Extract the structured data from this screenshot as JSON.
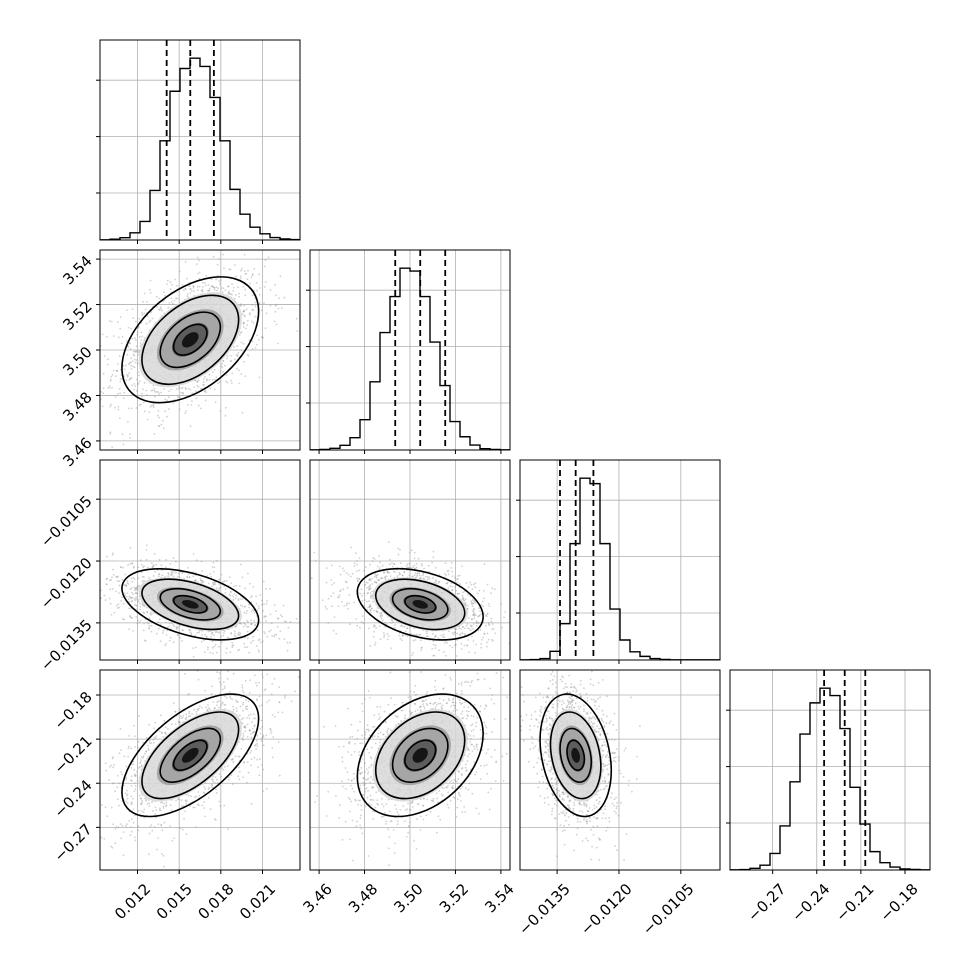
{
  "chart_data": {
    "type": "corner",
    "title": "",
    "parameters": [
      "",
      "",
      "",
      ""
    ],
    "ranges": [
      [
        0.0093,
        0.0237
      ],
      [
        3.456,
        3.544
      ],
      [
        -0.0144,
        -0.00955
      ],
      [
        -0.299,
        -0.163
      ]
    ],
    "ticks": [
      [
        0.012,
        0.015,
        0.018,
        0.021
      ],
      [
        3.46,
        3.48,
        3.5,
        3.52,
        3.54
      ],
      [
        -0.0135,
        -0.012,
        -0.0105
      ],
      [
        -0.27,
        -0.24,
        -0.21,
        -0.18
      ]
    ],
    "tick_labels": [
      [
        "0.012",
        "0.015",
        "0.018",
        "0.021"
      ],
      [
        "3.46",
        "3.48",
        "3.50",
        "3.52",
        "3.54"
      ],
      [
        "−0.0135",
        "−0.0120",
        "−0.0105"
      ],
      [
        "−0.27",
        "−0.24",
        "−0.21",
        "−0.18"
      ]
    ],
    "quantiles": [
      [
        0.0141,
        0.0158,
        0.0175
      ],
      [
        3.4935,
        3.5045,
        3.5155
      ],
      [
        -0.01343,
        -0.01305,
        -0.01262
      ],
      [
        -0.235,
        -0.221,
        -0.207
      ]
    ],
    "histograms": [
      [
        1,
        4,
        11,
        35,
        90,
        240,
        480,
        720,
        830,
        880,
        840,
        690,
        480,
        245,
        125,
        62,
        30,
        12,
        5,
        2
      ],
      [
        1,
        3,
        9,
        25,
        65,
        160,
        360,
        620,
        810,
        960,
        945,
        810,
        570,
        340,
        150,
        70,
        26,
        7,
        3,
        1
      ],
      [
        1,
        2,
        8,
        48,
        200,
        640,
        1000,
        970,
        640,
        280,
        110,
        45,
        20,
        8,
        3,
        1,
        1,
        1,
        1,
        1
      ],
      [
        1,
        2,
        9,
        26,
        90,
        240,
        480,
        740,
        910,
        990,
        950,
        770,
        450,
        250,
        100,
        40,
        16,
        6,
        3,
        1
      ]
    ],
    "correlations": [
      [
        1.0,
        0.45,
        -0.45,
        0.6
      ],
      [
        0.45,
        1.0,
        -0.35,
        0.35
      ],
      [
        -0.45,
        -0.35,
        1.0,
        -0.25
      ],
      [
        0.6,
        0.35,
        -0.25,
        1.0
      ]
    ],
    "sigmas": [
      0.0024,
      0.0135,
      0.00042,
      0.0203
    ],
    "grid": true
  }
}
